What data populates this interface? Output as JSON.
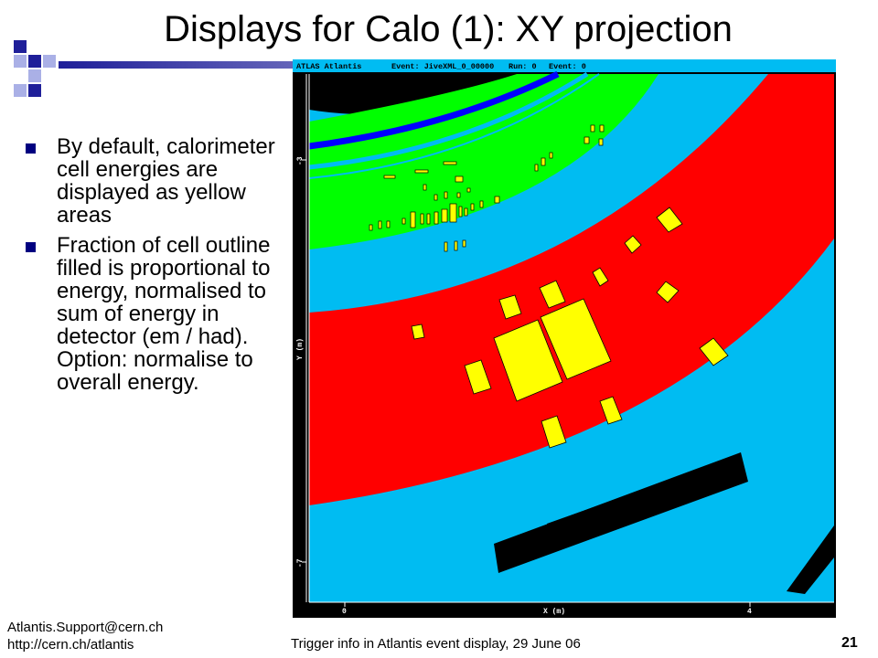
{
  "slide": {
    "title": "Displays for Calo (1): XY projection",
    "bullets": [
      {
        "text": "By default, calorimeter cell energies are displayed as yellow areas",
        "option": ""
      },
      {
        "text": "Fraction of cell outline filled is proportional to energy, normalised to sum of energy in detector (em / had).",
        "option": "Option: normalise to overall energy."
      }
    ],
    "footer": {
      "email": "Atlantis.Support@cern.ch",
      "url": "http://cern.ch/atlantis",
      "center": "Trigger info in Atlantis event display, 29 June 06",
      "page_number": "21"
    }
  },
  "display": {
    "header": {
      "app": "ATLAS Atlantis",
      "event_file": "Event: JiveXML_0_00000",
      "run": "Run: 0",
      "event": "Event: 0"
    },
    "axes": {
      "y_label": "Y (m)",
      "y_tick_top": "-3",
      "y_tick_bottom": "-7",
      "x_label": "X (m)",
      "x_tick_left": "0",
      "x_tick_right": "4"
    },
    "colors": {
      "header_bg": "#00bcf2",
      "background": "#00bcf2",
      "em_calorimeter": "#00ff00",
      "had_calorimeter": "#ff0000",
      "cell_energy": "#ffff00",
      "solenoid": "#0000ff",
      "muon_chamber": "#000000"
    }
  }
}
